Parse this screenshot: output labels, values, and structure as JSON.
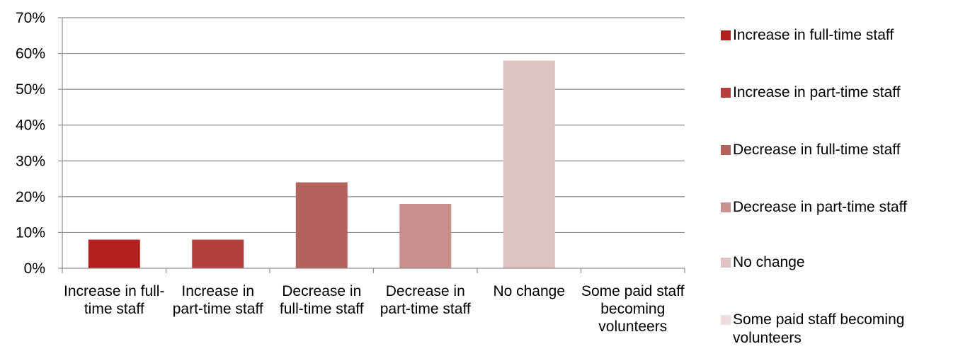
{
  "chart_data": {
    "type": "bar",
    "categories": [
      "Increase in full-time staff",
      "Increase in part-time staff",
      "Decrease in full-time staff",
      "Decrease in part-time staff",
      "No change",
      "Some paid staff becoming volunteers"
    ],
    "values": [
      8,
      8,
      24,
      18,
      58,
      0
    ],
    "colors": [
      "#b2211e",
      "#b33e3a",
      "#b5625e",
      "#c98f8d",
      "#dfc3c3",
      "#efdcdc"
    ],
    "ylim": [
      0,
      70
    ],
    "yticks": [
      "0%",
      "10%",
      "20%",
      "30%",
      "40%",
      "50%",
      "60%",
      "70%"
    ],
    "ytick_values": [
      0,
      10,
      20,
      30,
      40,
      50,
      60,
      70
    ],
    "grid": true,
    "legend_position": "right",
    "legend": [
      "Increase in full-time staff",
      "Increase in part-time staff",
      "Decrease in full-time staff",
      "Decrease in part-time staff",
      "No change",
      "Some paid staff becoming volunteers"
    ],
    "title": "",
    "xlabel": "",
    "ylabel": ""
  }
}
